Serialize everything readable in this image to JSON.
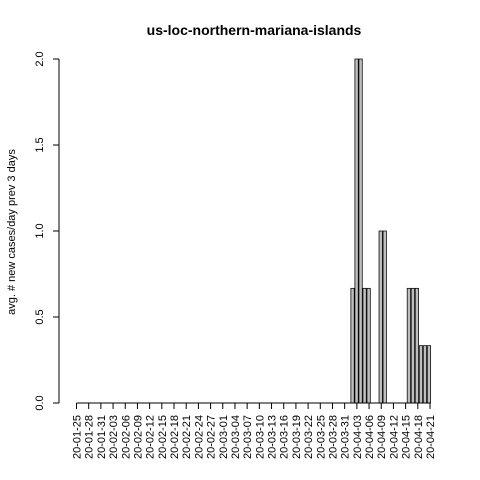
{
  "chart_data": {
    "type": "bar",
    "title": "us-loc-northern-mariana-islands",
    "xlabel": "",
    "ylabel": "avg. # new cases/day prev  3  days",
    "ylim": [
      0,
      2.0
    ],
    "yticks": [
      "0.0",
      "0.5",
      "1.0",
      "1.5",
      "2.0"
    ],
    "grid": false,
    "bar_color": "#bebebe",
    "x_tick_labels": [
      "20-01-25",
      "20-01-28",
      "20-01-31",
      "20-02-03",
      "20-02-06",
      "20-02-09",
      "20-02-12",
      "20-02-15",
      "20-02-18",
      "20-02-21",
      "20-02-24",
      "20-02-27",
      "20-03-01",
      "20-03-04",
      "20-03-07",
      "20-03-10",
      "20-03-13",
      "20-03-16",
      "20-03-19",
      "20-03-22",
      "20-03-25",
      "20-03-28",
      "20-03-31",
      "20-04-03",
      "20-04-06",
      "20-04-09",
      "20-04-12",
      "20-04-15",
      "20-04-18",
      "20-04-21"
    ],
    "categories": [
      "20-01-23",
      "20-01-24",
      "20-01-25",
      "20-01-26",
      "20-01-27",
      "20-01-28",
      "20-01-29",
      "20-01-30",
      "20-01-31",
      "20-02-01",
      "20-02-02",
      "20-02-03",
      "20-02-04",
      "20-02-05",
      "20-02-06",
      "20-02-07",
      "20-02-08",
      "20-02-09",
      "20-02-10",
      "20-02-11",
      "20-02-12",
      "20-02-13",
      "20-02-14",
      "20-02-15",
      "20-02-16",
      "20-02-17",
      "20-02-18",
      "20-02-19",
      "20-02-20",
      "20-02-21",
      "20-02-22",
      "20-02-23",
      "20-02-24",
      "20-02-25",
      "20-02-26",
      "20-02-27",
      "20-02-28",
      "20-02-29",
      "20-03-01",
      "20-03-02",
      "20-03-03",
      "20-03-04",
      "20-03-05",
      "20-03-06",
      "20-03-07",
      "20-03-08",
      "20-03-09",
      "20-03-10",
      "20-03-11",
      "20-03-12",
      "20-03-13",
      "20-03-14",
      "20-03-15",
      "20-03-16",
      "20-03-17",
      "20-03-18",
      "20-03-19",
      "20-03-20",
      "20-03-21",
      "20-03-22",
      "20-03-23",
      "20-03-24",
      "20-03-25",
      "20-03-26",
      "20-03-27",
      "20-03-28",
      "20-03-29",
      "20-03-30",
      "20-03-31",
      "20-04-01",
      "20-04-02",
      "20-04-03",
      "20-04-04",
      "20-04-05",
      "20-04-06",
      "20-04-07",
      "20-04-08",
      "20-04-09",
      "20-04-10",
      "20-04-11",
      "20-04-12",
      "20-04-13",
      "20-04-14",
      "20-04-15",
      "20-04-16",
      "20-04-17",
      "20-04-18",
      "20-04-19",
      "20-04-20",
      "20-04-21"
    ],
    "values": [
      0,
      0,
      0,
      0,
      0,
      0,
      0,
      0,
      0,
      0,
      0,
      0,
      0,
      0,
      0,
      0,
      0,
      0,
      0,
      0,
      0,
      0,
      0,
      0,
      0,
      0,
      0,
      0,
      0,
      0,
      0,
      0,
      0,
      0,
      0,
      0,
      0,
      0,
      0,
      0,
      0,
      0,
      0,
      0,
      0,
      0,
      0,
      0,
      0,
      0,
      0,
      0,
      0,
      0,
      0,
      0,
      0,
      0,
      0,
      0,
      0,
      0,
      0,
      0,
      0,
      0,
      0,
      0,
      0,
      0.6667,
      2.0,
      2.0,
      0.6667,
      0.6667,
      0,
      0,
      1.0,
      1.0,
      0,
      0,
      0,
      0,
      0,
      0.6667,
      0.6667,
      0.6667,
      0.3333,
      0.3333,
      0.3333,
      0
    ]
  }
}
